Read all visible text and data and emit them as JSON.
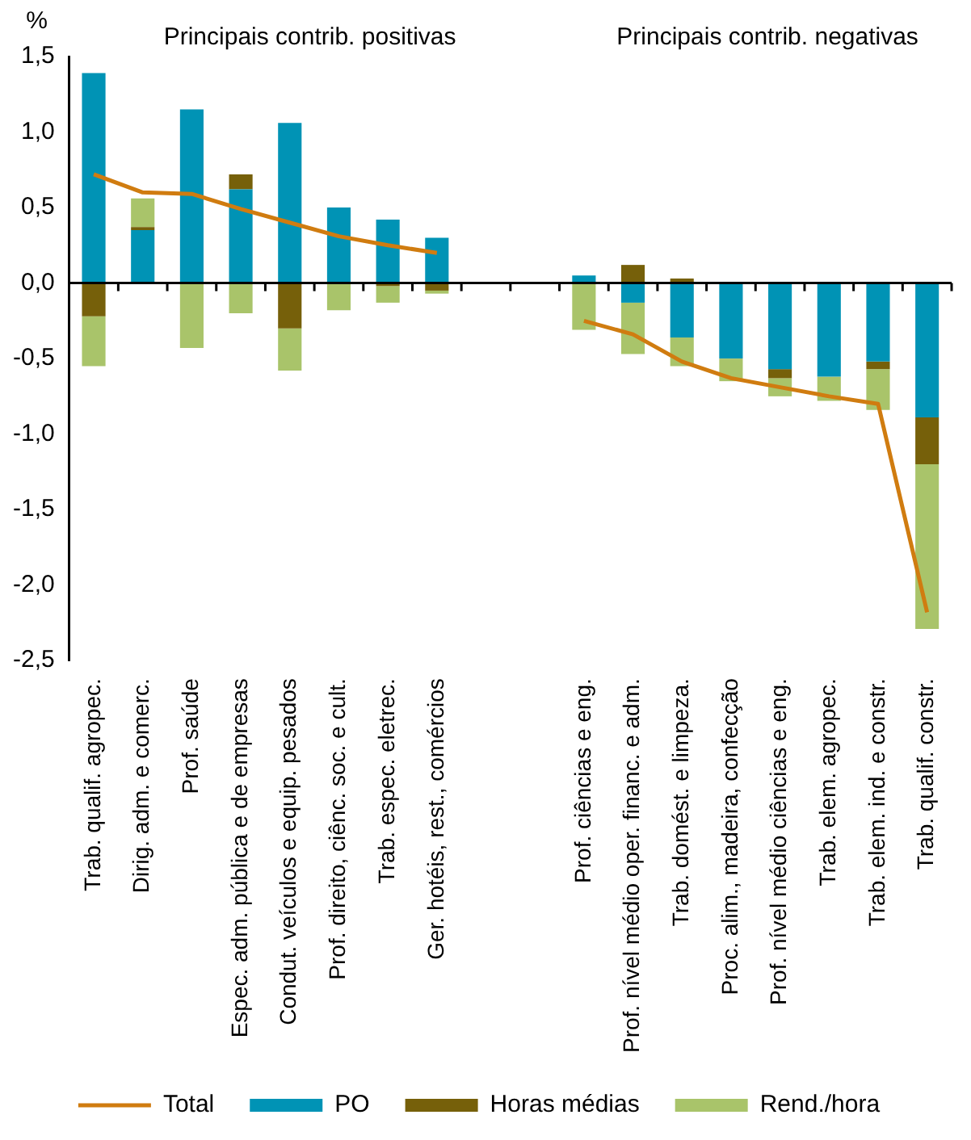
{
  "chart_data": {
    "type": "bar",
    "stacked": true,
    "ylabel": "%",
    "legend": "bottom",
    "annotations": [
      "Principais contrib. positivas",
      "Principais contrib. negativas"
    ],
    "categories": [
      "Trab. qualif. agropec.",
      "Dirig. adm. e comerc.",
      "Prof. saúde",
      "Espec. adm. pública e de empresas",
      "Condut. veículos e equip. pesados",
      "Prof. direito, ciênc. soc. e cult.",
      "Trab. espec. eletrec.",
      "Ger. hotéis, rest., comércios",
      null,
      null,
      "Prof. ciências e eng.",
      "Prof. nível médio oper. financ. e adm.",
      "Trab. domést. e limpeza.",
      "Proc. alim., madeira, confecção",
      "Prof. nível médio ciências e eng.",
      "Trab. elem. agropec.",
      "Trab. elem. ind. e constr.",
      "Trab. qualif. constr."
    ],
    "ylim": [
      -2.5,
      1.5
    ],
    "yticks": [
      {
        "value": -2.5,
        "label": "-2,5"
      },
      {
        "value": -2,
        "label": "-2,0"
      },
      {
        "value": -1.5,
        "label": "-1,5"
      },
      {
        "value": -1,
        "label": "-1,0"
      },
      {
        "value": -0.5,
        "label": "-0,5"
      },
      {
        "value": 0,
        "label": "0,0"
      },
      {
        "value": 0.5,
        "label": "0,5"
      },
      {
        "value": 1,
        "label": "1,0"
      },
      {
        "value": 1.5,
        "label": "1,5"
      }
    ],
    "series": [
      {
        "name": "PO",
        "color": "#0093b5",
        "values": [
          1.39,
          0.35,
          1.15,
          0.62,
          1.06,
          0.5,
          0.42,
          0.3,
          null,
          null,
          0.05,
          -0.13,
          -0.36,
          -0.5,
          -0.57,
          -0.62,
          -0.52,
          -0.89
        ]
      },
      {
        "name": "Horas médias",
        "color": "#76600a",
        "values": [
          -0.22,
          0.02,
          null,
          0.1,
          -0.3,
          null,
          -0.02,
          -0.05,
          null,
          null,
          null,
          0.12,
          0.03,
          null,
          -0.06,
          null,
          -0.05,
          -0.31
        ]
      },
      {
        "name": "Rend./hora",
        "color": "#a9c46a",
        "values": [
          -0.33,
          0.19,
          -0.43,
          -0.2,
          -0.28,
          -0.18,
          -0.11,
          -0.02,
          null,
          null,
          -0.31,
          -0.34,
          -0.19,
          -0.15,
          -0.12,
          -0.16,
          -0.27,
          -1.09
        ]
      },
      {
        "name": "Total",
        "type": "line",
        "color": "#d07c10",
        "values": [
          0.72,
          0.6,
          0.59,
          0.49,
          0.4,
          0.31,
          0.25,
          0.2,
          null,
          null,
          -0.25,
          -0.34,
          -0.52,
          -0.63,
          -0.69,
          -0.75,
          -0.8,
          -2.18
        ]
      }
    ]
  }
}
